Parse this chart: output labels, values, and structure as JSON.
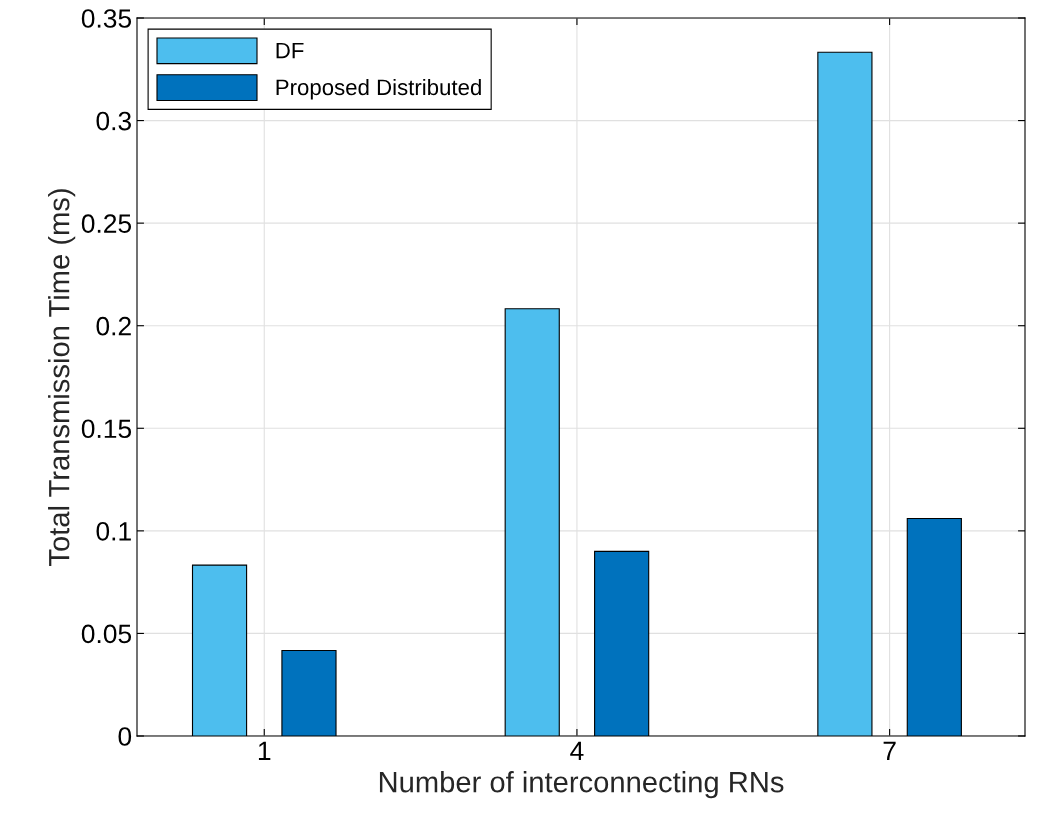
{
  "chart_data": {
    "type": "bar",
    "xlabel": "Number of interconnecting RNs",
    "ylabel": "Total Transmission Time (ms)",
    "categories": [
      "1",
      "4",
      "7"
    ],
    "series": [
      {
        "name": "DF",
        "color": "#4dbeee",
        "values": [
          0.0833,
          0.2083,
          0.3333
        ]
      },
      {
        "name": "Proposed Distributed",
        "color": "#0072bd",
        "values": [
          0.0417,
          0.09,
          0.106
        ]
      }
    ],
    "ylim": [
      0,
      0.35
    ],
    "yticks": [
      0,
      {
        "value": 0.05,
        "label": "0.05"
      },
      {
        "value": 0.1,
        "label": "0.1"
      },
      {
        "value": 0.15,
        "label": "0.15"
      },
      {
        "value": 0.2,
        "label": "0.2"
      },
      {
        "value": 0.25,
        "label": "0.25"
      },
      {
        "value": 0.3,
        "label": "0.3"
      },
      {
        "value": 0.35,
        "label": "0.35"
      }
    ],
    "grid": true,
    "legend": "top left"
  }
}
